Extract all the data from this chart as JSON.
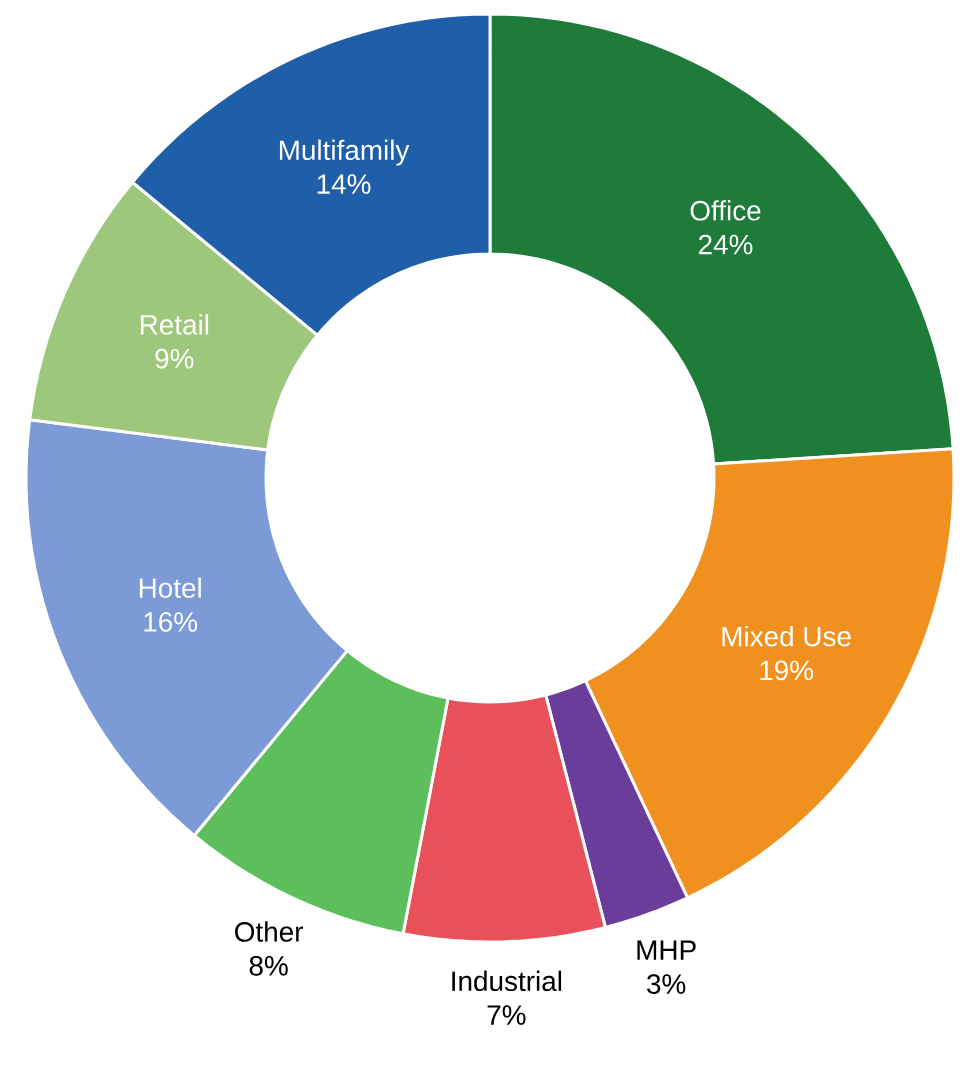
{
  "chart_data": {
    "type": "donut",
    "categories": [
      "Office",
      "Mixed Use",
      "MHP",
      "Industrial",
      "Other",
      "Hotel",
      "Retail",
      "Multifamily"
    ],
    "values": [
      24,
      19,
      3,
      7,
      8,
      16,
      9,
      14
    ],
    "value_labels": [
      "24%",
      "19%",
      "3%",
      "7%",
      "8%",
      "16%",
      "9%",
      "14%"
    ],
    "colors": [
      "#1e7b3a",
      "#f0901e",
      "#6a3d9a",
      "#e8505a",
      "#5cbf5c",
      "#7b9ad6",
      "#9dc77a",
      "#1f5ea8"
    ]
  }
}
